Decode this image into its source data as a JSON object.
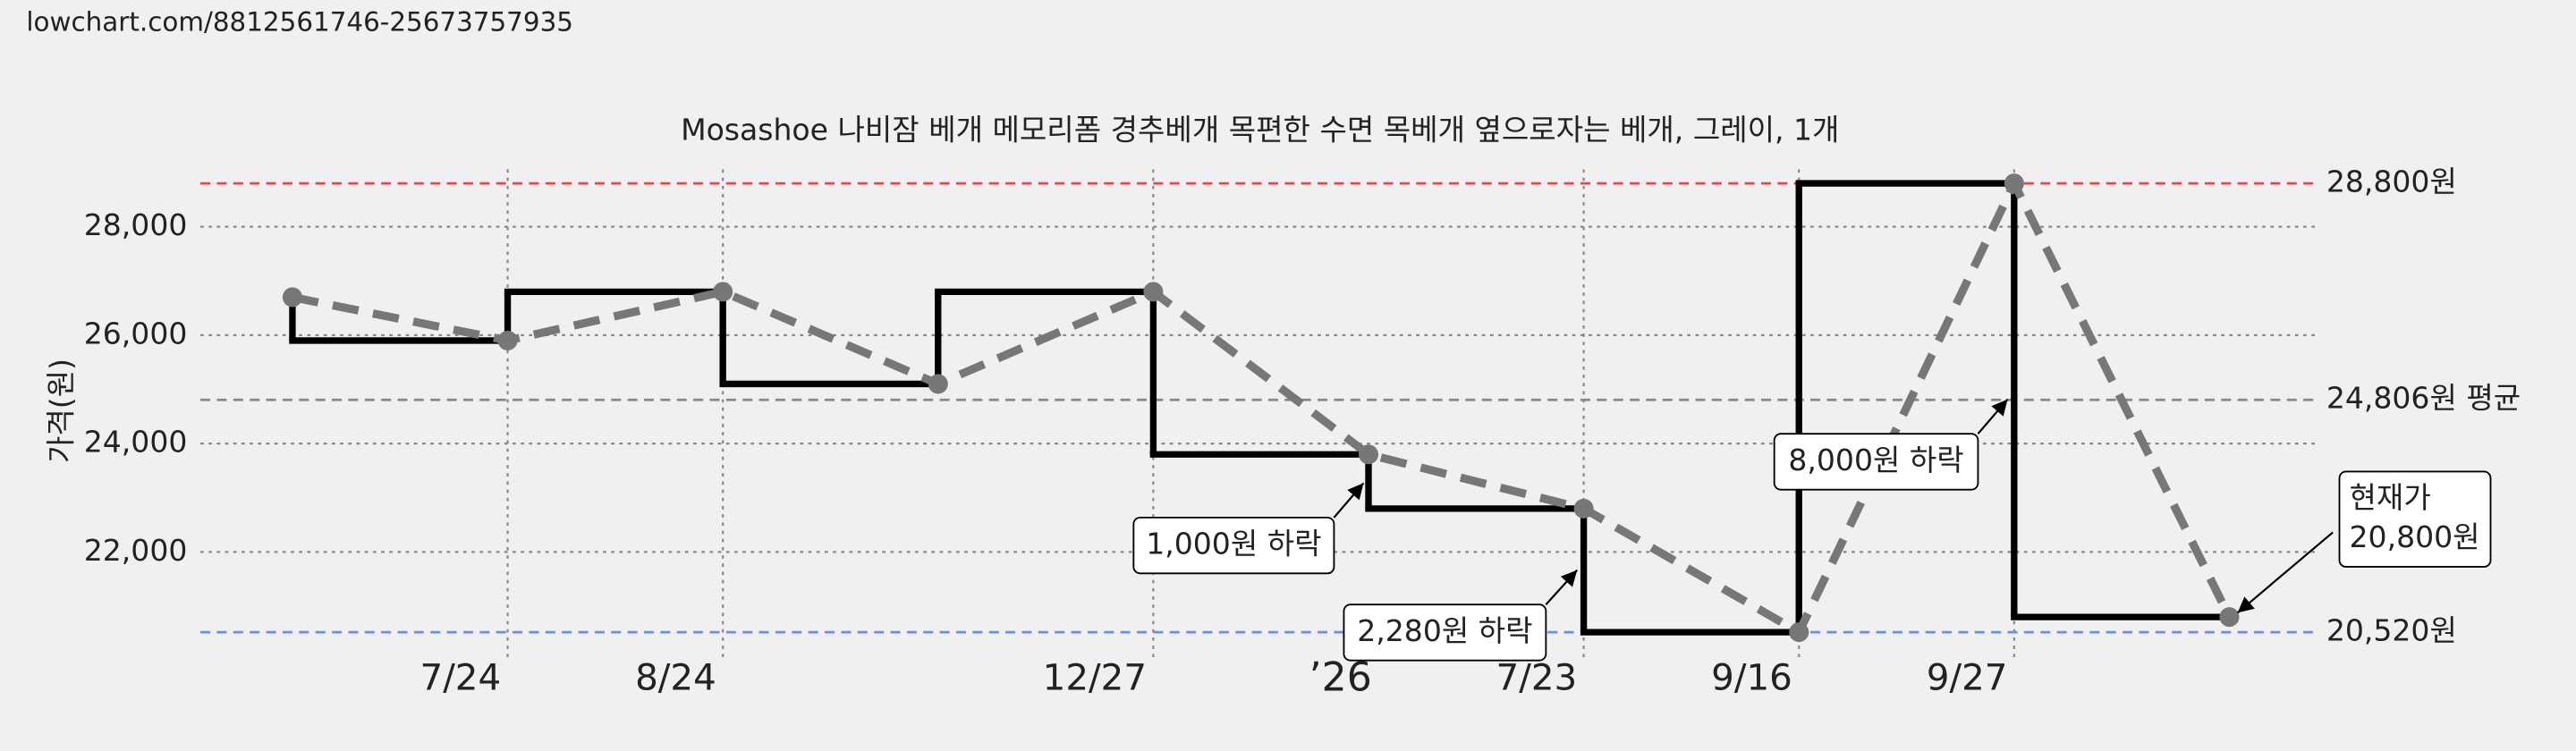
{
  "source_url": "lowchart.com/8812561746-25673757935",
  "chart_data": {
    "type": "line",
    "title": "Mosashoe 나비잠 베개 메모리폼 경추베개 목편한 수면 목베개 옆으로자는 베개, 그레이, 1개",
    "y_label": "가격(원)",
    "categories": [
      null,
      "7/24",
      "8/24",
      null,
      "12/27",
      null,
      "7/23",
      "9/16",
      "9/27",
      null
    ],
    "year_marker": "’26",
    "series": [
      {
        "color": "#777777",
        "values": [
          26700,
          25900,
          26800,
          25100,
          26800,
          23800,
          22800,
          20520,
          28800,
          20800
        ]
      }
    ],
    "step_color": "#000000",
    "ylim": [
      20060,
      29300
    ],
    "yticks": [
      {
        "value": 22000,
        "label": "22,000"
      },
      {
        "value": 24000,
        "label": "24,000"
      },
      {
        "value": 26000,
        "label": "26,000"
      },
      {
        "value": 28000,
        "label": "28,000"
      }
    ],
    "grid": true,
    "reference_lines": [
      {
        "value": 28800,
        "label": "28,800원",
        "color": "#e8474d"
      },
      {
        "value": 24806,
        "label": "24,806원 평균",
        "color": "#888888"
      },
      {
        "value": 20520,
        "label": "20,520원",
        "color": "#6a8fe8"
      }
    ],
    "annotations": [
      {
        "lines": [
          "1,000원 하락"
        ]
      },
      {
        "lines": [
          "2,280원 하락"
        ]
      },
      {
        "lines": [
          "8,000원 하락"
        ]
      },
      {
        "lines": [
          "현재가",
          "20,800원"
        ]
      }
    ]
  }
}
